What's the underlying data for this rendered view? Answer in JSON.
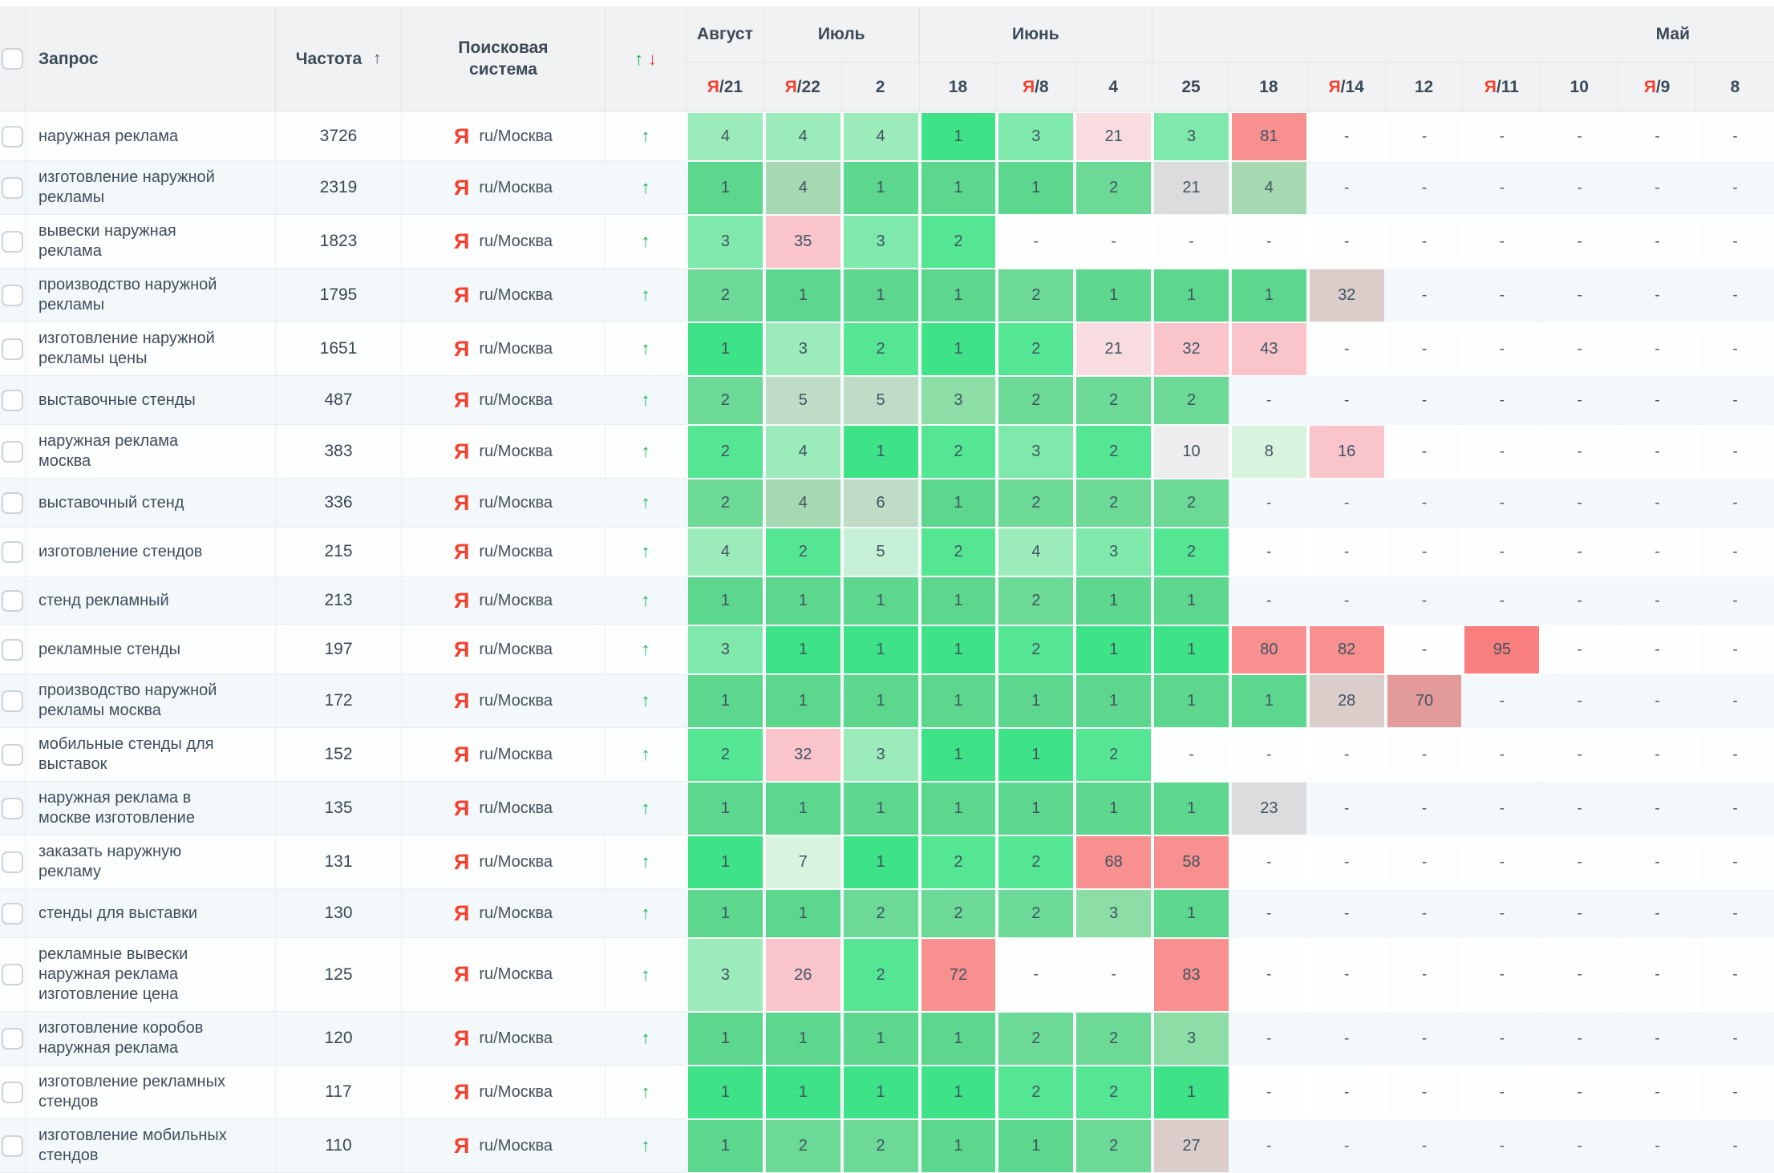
{
  "palette": {
    "G1": "#3ee387",
    "G1M": "#5ed78e",
    "G2": "#55e694",
    "G2M": "#6cd996",
    "G3": "#7fe9ac",
    "G3M": "#8cdda6",
    "G4": "#9cebbb",
    "G4M": "#a6d9b1",
    "G5": "#bedcc6",
    "G5L": "#c6f0d6",
    "G6": "#d8f4de",
    "GRL": "#eeeef0",
    "GR": "#dcdcde",
    "GP": "#dacdca",
    "RO": "#e29b98",
    "P1": "#f8dce0",
    "P2": "#f9c5cb",
    "R1": "#f89090",
    "R2": "#f97e7e"
  },
  "colors": {
    "header_bg": "#f1f2f4",
    "alt_row": "#f3f8fb",
    "yandex_red": "#f5402e",
    "up_green": "#10b259",
    "down_red": "#f23d41",
    "text": "#3f4e5b"
  },
  "header": {
    "query_label": "Запрос",
    "frequency_label": "Частота",
    "frequency_sort_icon": "↑",
    "engine_label_line1": "Поисковая",
    "engine_label_line2": "система",
    "arrows_up": "↑",
    "arrows_down": "↓",
    "months": [
      {
        "label": "Август",
        "span": 1
      },
      {
        "label": "Июль",
        "span": 2
      },
      {
        "label": "Июнь",
        "span": 3
      },
      {
        "label": "Май",
        "span": 8,
        "align": "right"
      }
    ],
    "dates": [
      {
        "yandex": true,
        "label": "21"
      },
      {
        "yandex": true,
        "label": "22"
      },
      {
        "yandex": false,
        "label": "2"
      },
      {
        "yandex": false,
        "label": "18"
      },
      {
        "yandex": true,
        "label": "8"
      },
      {
        "yandex": false,
        "label": "4"
      },
      {
        "yandex": false,
        "label": "25"
      },
      {
        "yandex": false,
        "label": "18"
      },
      {
        "yandex": true,
        "label": "14"
      },
      {
        "yandex": false,
        "label": "12"
      },
      {
        "yandex": true,
        "label": "11"
      },
      {
        "yandex": false,
        "label": "10"
      },
      {
        "yandex": true,
        "label": "9"
      },
      {
        "yandex": false,
        "label": "8"
      }
    ]
  },
  "engine_icon": "Я",
  "row_change_icon": "↑",
  "rows": [
    {
      "query": "наружная реклама",
      "frequency": "3726",
      "engine": "ru/Москва",
      "cells": [
        [
          "4",
          "G4"
        ],
        [
          "4",
          "G4"
        ],
        [
          "4",
          "G4"
        ],
        [
          "1",
          "G1"
        ],
        [
          "3",
          "G3"
        ],
        [
          "21",
          "P1"
        ],
        [
          "3",
          "G3"
        ],
        [
          "81",
          "R1"
        ],
        [
          "-",
          ""
        ],
        [
          "-",
          ""
        ],
        [
          "-",
          ""
        ],
        [
          "-",
          ""
        ],
        [
          "-",
          ""
        ],
        [
          "-",
          ""
        ]
      ]
    },
    {
      "query": "изготовление наружной рекламы",
      "frequency": "2319",
      "engine": "ru/Москва",
      "cells": [
        [
          "1",
          "G1M"
        ],
        [
          "4",
          "G4M"
        ],
        [
          "1",
          "G1M"
        ],
        [
          "1",
          "G1M"
        ],
        [
          "1",
          "G1M"
        ],
        [
          "2",
          "G2M"
        ],
        [
          "21",
          "GR"
        ],
        [
          "4",
          "G4M"
        ],
        [
          "-",
          ""
        ],
        [
          "-",
          ""
        ],
        [
          "-",
          ""
        ],
        [
          "-",
          ""
        ],
        [
          "-",
          ""
        ],
        [
          "-",
          ""
        ]
      ]
    },
    {
      "query": "вывески наружная реклама",
      "frequency": "1823",
      "engine": "ru/Москва",
      "cells": [
        [
          "3",
          "G3"
        ],
        [
          "35",
          "P2"
        ],
        [
          "3",
          "G3"
        ],
        [
          "2",
          "G2"
        ],
        [
          "-",
          ""
        ],
        [
          "-",
          ""
        ],
        [
          "-",
          ""
        ],
        [
          "-",
          ""
        ],
        [
          "-",
          ""
        ],
        [
          "-",
          ""
        ],
        [
          "-",
          ""
        ],
        [
          "-",
          ""
        ],
        [
          "-",
          ""
        ],
        [
          "-",
          ""
        ]
      ]
    },
    {
      "query": "производство наружной рекламы",
      "frequency": "1795",
      "engine": "ru/Москва",
      "cells": [
        [
          "2",
          "G2M"
        ],
        [
          "1",
          "G1M"
        ],
        [
          "1",
          "G1M"
        ],
        [
          "1",
          "G1M"
        ],
        [
          "2",
          "G2M"
        ],
        [
          "1",
          "G1M"
        ],
        [
          "1",
          "G1M"
        ],
        [
          "1",
          "G1M"
        ],
        [
          "32",
          "GP"
        ],
        [
          "-",
          ""
        ],
        [
          "-",
          ""
        ],
        [
          "-",
          ""
        ],
        [
          "-",
          ""
        ],
        [
          "-",
          ""
        ]
      ]
    },
    {
      "query": "изготовление наружной рекламы цены",
      "frequency": "1651",
      "engine": "ru/Москва",
      "cells": [
        [
          "1",
          "G1"
        ],
        [
          "3",
          "G4"
        ],
        [
          "2",
          "G2"
        ],
        [
          "1",
          "G1"
        ],
        [
          "2",
          "G2"
        ],
        [
          "21",
          "P1"
        ],
        [
          "32",
          "P2"
        ],
        [
          "43",
          "P2"
        ],
        [
          "-",
          ""
        ],
        [
          "-",
          ""
        ],
        [
          "-",
          ""
        ],
        [
          "-",
          ""
        ],
        [
          "-",
          ""
        ],
        [
          "-",
          ""
        ]
      ]
    },
    {
      "query": "выставочные стенды",
      "frequency": "487",
      "engine": "ru/Москва",
      "cells": [
        [
          "2",
          "G2M"
        ],
        [
          "5",
          "G5"
        ],
        [
          "5",
          "G5"
        ],
        [
          "3",
          "G3M"
        ],
        [
          "2",
          "G2M"
        ],
        [
          "2",
          "G2M"
        ],
        [
          "2",
          "G2M"
        ],
        [
          "-",
          ""
        ],
        [
          "-",
          ""
        ],
        [
          "-",
          ""
        ],
        [
          "-",
          ""
        ],
        [
          "-",
          ""
        ],
        [
          "-",
          ""
        ],
        [
          "-",
          ""
        ]
      ]
    },
    {
      "query": "наружная реклама москва",
      "frequency": "383",
      "engine": "ru/Москва",
      "cells": [
        [
          "2",
          "G2"
        ],
        [
          "4",
          "G4"
        ],
        [
          "1",
          "G1"
        ],
        [
          "2",
          "G2"
        ],
        [
          "3",
          "G3"
        ],
        [
          "2",
          "G2"
        ],
        [
          "10",
          "GRL"
        ],
        [
          "8",
          "G6"
        ],
        [
          "16",
          "P2"
        ],
        [
          "-",
          ""
        ],
        [
          "-",
          ""
        ],
        [
          "-",
          ""
        ],
        [
          "-",
          ""
        ],
        [
          "-",
          ""
        ]
      ]
    },
    {
      "query": "выставочный стенд",
      "frequency": "336",
      "engine": "ru/Москва",
      "cells": [
        [
          "2",
          "G2M"
        ],
        [
          "4",
          "G4M"
        ],
        [
          "6",
          "G5"
        ],
        [
          "1",
          "G1M"
        ],
        [
          "2",
          "G2M"
        ],
        [
          "2",
          "G2M"
        ],
        [
          "2",
          "G2M"
        ],
        [
          "-",
          ""
        ],
        [
          "-",
          ""
        ],
        [
          "-",
          ""
        ],
        [
          "-",
          ""
        ],
        [
          "-",
          ""
        ],
        [
          "-",
          ""
        ],
        [
          "-",
          ""
        ]
      ]
    },
    {
      "query": "изготовление стендов",
      "frequency": "215",
      "engine": "ru/Москва",
      "cells": [
        [
          "4",
          "G4"
        ],
        [
          "2",
          "G2"
        ],
        [
          "5",
          "G5L"
        ],
        [
          "2",
          "G2"
        ],
        [
          "4",
          "G4"
        ],
        [
          "3",
          "G3"
        ],
        [
          "2",
          "G2"
        ],
        [
          "-",
          ""
        ],
        [
          "-",
          ""
        ],
        [
          "-",
          ""
        ],
        [
          "-",
          ""
        ],
        [
          "-",
          ""
        ],
        [
          "-",
          ""
        ],
        [
          "-",
          ""
        ]
      ]
    },
    {
      "query": "стенд рекламный",
      "frequency": "213",
      "engine": "ru/Москва",
      "cells": [
        [
          "1",
          "G1M"
        ],
        [
          "1",
          "G1M"
        ],
        [
          "1",
          "G1M"
        ],
        [
          "1",
          "G1M"
        ],
        [
          "2",
          "G2M"
        ],
        [
          "1",
          "G1M"
        ],
        [
          "1",
          "G1M"
        ],
        [
          "-",
          ""
        ],
        [
          "-",
          ""
        ],
        [
          "-",
          ""
        ],
        [
          "-",
          ""
        ],
        [
          "-",
          ""
        ],
        [
          "-",
          ""
        ],
        [
          "-",
          ""
        ]
      ]
    },
    {
      "query": "рекламные стенды",
      "frequency": "197",
      "engine": "ru/Москва",
      "cells": [
        [
          "3",
          "G3"
        ],
        [
          "1",
          "G1"
        ],
        [
          "1",
          "G1"
        ],
        [
          "1",
          "G1"
        ],
        [
          "2",
          "G2"
        ],
        [
          "1",
          "G1"
        ],
        [
          "1",
          "G1"
        ],
        [
          "80",
          "R1"
        ],
        [
          "82",
          "R1"
        ],
        [
          "-",
          ""
        ],
        [
          "95",
          "R2"
        ],
        [
          "-",
          ""
        ],
        [
          "-",
          ""
        ],
        [
          "-",
          ""
        ]
      ]
    },
    {
      "query": "производство наружной рекламы москва",
      "frequency": "172",
      "engine": "ru/Москва",
      "cells": [
        [
          "1",
          "G1M"
        ],
        [
          "1",
          "G1M"
        ],
        [
          "1",
          "G1M"
        ],
        [
          "1",
          "G1M"
        ],
        [
          "1",
          "G1M"
        ],
        [
          "1",
          "G1M"
        ],
        [
          "1",
          "G1M"
        ],
        [
          "1",
          "G1M"
        ],
        [
          "28",
          "GP"
        ],
        [
          "70",
          "RO"
        ],
        [
          "-",
          ""
        ],
        [
          "-",
          ""
        ],
        [
          "-",
          ""
        ],
        [
          "-",
          ""
        ]
      ]
    },
    {
      "query": "мобильные стенды для выставок",
      "frequency": "152",
      "engine": "ru/Москва",
      "cells": [
        [
          "2",
          "G2"
        ],
        [
          "32",
          "P2"
        ],
        [
          "3",
          "G4"
        ],
        [
          "1",
          "G1"
        ],
        [
          "1",
          "G1"
        ],
        [
          "2",
          "G2"
        ],
        [
          "-",
          ""
        ],
        [
          "-",
          ""
        ],
        [
          "-",
          ""
        ],
        [
          "-",
          ""
        ],
        [
          "-",
          ""
        ],
        [
          "-",
          ""
        ],
        [
          "-",
          ""
        ],
        [
          "-",
          ""
        ]
      ]
    },
    {
      "query": "наружная реклама в москве изготовление",
      "frequency": "135",
      "engine": "ru/Москва",
      "cells": [
        [
          "1",
          "G1M"
        ],
        [
          "1",
          "G1M"
        ],
        [
          "1",
          "G1M"
        ],
        [
          "1",
          "G1M"
        ],
        [
          "1",
          "G1M"
        ],
        [
          "1",
          "G1M"
        ],
        [
          "1",
          "G1M"
        ],
        [
          "23",
          "GR"
        ],
        [
          "-",
          ""
        ],
        [
          "-",
          ""
        ],
        [
          "-",
          ""
        ],
        [
          "-",
          ""
        ],
        [
          "-",
          ""
        ],
        [
          "-",
          ""
        ]
      ]
    },
    {
      "query": "заказать наружную рекламу",
      "frequency": "131",
      "engine": "ru/Москва",
      "cells": [
        [
          "1",
          "G1"
        ],
        [
          "7",
          "G6"
        ],
        [
          "1",
          "G1"
        ],
        [
          "2",
          "G2"
        ],
        [
          "2",
          "G2"
        ],
        [
          "68",
          "R1"
        ],
        [
          "58",
          "R1"
        ],
        [
          "-",
          ""
        ],
        [
          "-",
          ""
        ],
        [
          "-",
          ""
        ],
        [
          "-",
          ""
        ],
        [
          "-",
          ""
        ],
        [
          "-",
          ""
        ],
        [
          "-",
          ""
        ]
      ]
    },
    {
      "query": "стенды для выставки",
      "frequency": "130",
      "engine": "ru/Москва",
      "cells": [
        [
          "1",
          "G1M"
        ],
        [
          "1",
          "G1M"
        ],
        [
          "2",
          "G2M"
        ],
        [
          "2",
          "G2M"
        ],
        [
          "2",
          "G2M"
        ],
        [
          "3",
          "G3M"
        ],
        [
          "1",
          "G1M"
        ],
        [
          "-",
          ""
        ],
        [
          "-",
          ""
        ],
        [
          "-",
          ""
        ],
        [
          "-",
          ""
        ],
        [
          "-",
          ""
        ],
        [
          "-",
          ""
        ],
        [
          "-",
          ""
        ]
      ]
    },
    {
      "query": "рекламные вывески наружная реклама изготовление цена",
      "frequency": "125",
      "engine": "ru/Москва",
      "cells": [
        [
          "3",
          "G4"
        ],
        [
          "26",
          "P2"
        ],
        [
          "2",
          "G2"
        ],
        [
          "72",
          "R1"
        ],
        [
          "-",
          ""
        ],
        [
          "-",
          ""
        ],
        [
          "83",
          "R1"
        ],
        [
          "-",
          ""
        ],
        [
          "-",
          ""
        ],
        [
          "-",
          ""
        ],
        [
          "-",
          ""
        ],
        [
          "-",
          ""
        ],
        [
          "-",
          ""
        ],
        [
          "-",
          ""
        ]
      ]
    },
    {
      "query": "изготовление коробов наружная реклама",
      "frequency": "120",
      "engine": "ru/Москва",
      "cells": [
        [
          "1",
          "G1M"
        ],
        [
          "1",
          "G1M"
        ],
        [
          "1",
          "G1M"
        ],
        [
          "1",
          "G1M"
        ],
        [
          "2",
          "G2M"
        ],
        [
          "2",
          "G2M"
        ],
        [
          "3",
          "G3M"
        ],
        [
          "-",
          ""
        ],
        [
          "-",
          ""
        ],
        [
          "-",
          ""
        ],
        [
          "-",
          ""
        ],
        [
          "-",
          ""
        ],
        [
          "-",
          ""
        ],
        [
          "-",
          ""
        ]
      ]
    },
    {
      "query": "изготовление рекламных стендов",
      "frequency": "117",
      "engine": "ru/Москва",
      "cells": [
        [
          "1",
          "G1"
        ],
        [
          "1",
          "G1"
        ],
        [
          "1",
          "G1"
        ],
        [
          "1",
          "G1"
        ],
        [
          "2",
          "G2"
        ],
        [
          "2",
          "G2"
        ],
        [
          "1",
          "G1"
        ],
        [
          "-",
          ""
        ],
        [
          "-",
          ""
        ],
        [
          "-",
          ""
        ],
        [
          "-",
          ""
        ],
        [
          "-",
          ""
        ],
        [
          "-",
          ""
        ],
        [
          "-",
          ""
        ]
      ]
    },
    {
      "query": "изготовление мобильных стендов",
      "frequency": "110",
      "engine": "ru/Москва",
      "cells": [
        [
          "1",
          "G1M"
        ],
        [
          "2",
          "G2M"
        ],
        [
          "2",
          "G2M"
        ],
        [
          "1",
          "G1M"
        ],
        [
          "1",
          "G1M"
        ],
        [
          "2",
          "G2M"
        ],
        [
          "27",
          "GP"
        ],
        [
          "-",
          ""
        ],
        [
          "-",
          ""
        ],
        [
          "-",
          ""
        ],
        [
          "-",
          ""
        ],
        [
          "-",
          ""
        ],
        [
          "-",
          ""
        ],
        [
          "-",
          ""
        ]
      ]
    }
  ]
}
